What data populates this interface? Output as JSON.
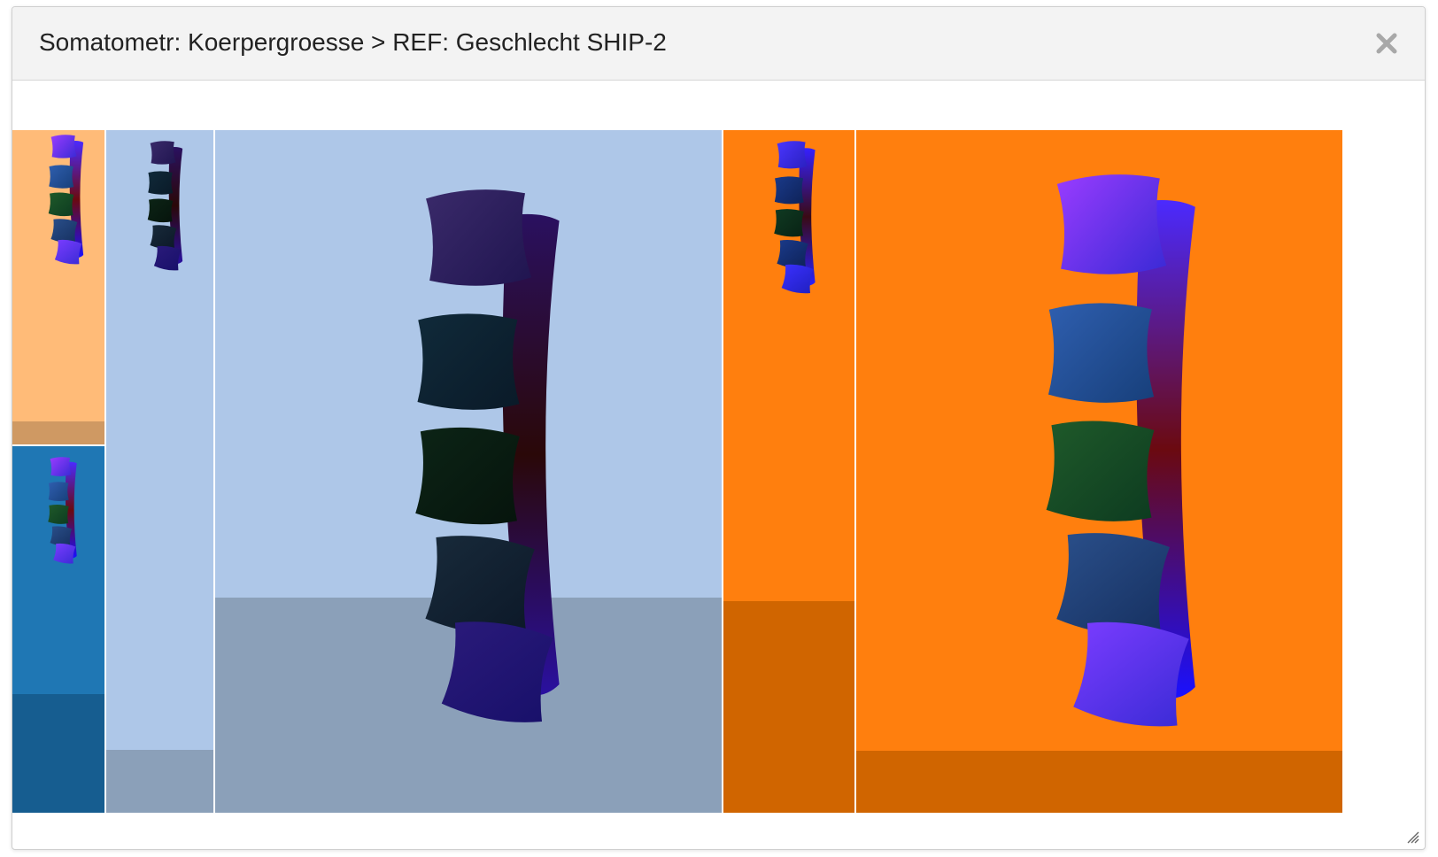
{
  "dialog": {
    "title": "Somatometr: Koerpergroesse > REF: Geschlecht SHIP-2",
    "close_icon": "close-icon",
    "resize_icon": "resize-grip-icon"
  },
  "treemap": {
    "colors": {
      "light_orange": "#FFBB78",
      "light_orange_bar": "#CF9963",
      "blue": "#1F77B4",
      "blue_bar": "#165D90",
      "light_blue": "#AEC7E8",
      "light_blue_bar": "#8BA0B9",
      "orange": "#FF7F0E",
      "orange_bar": "#D06500"
    },
    "glyph": "spine-glyph"
  }
}
